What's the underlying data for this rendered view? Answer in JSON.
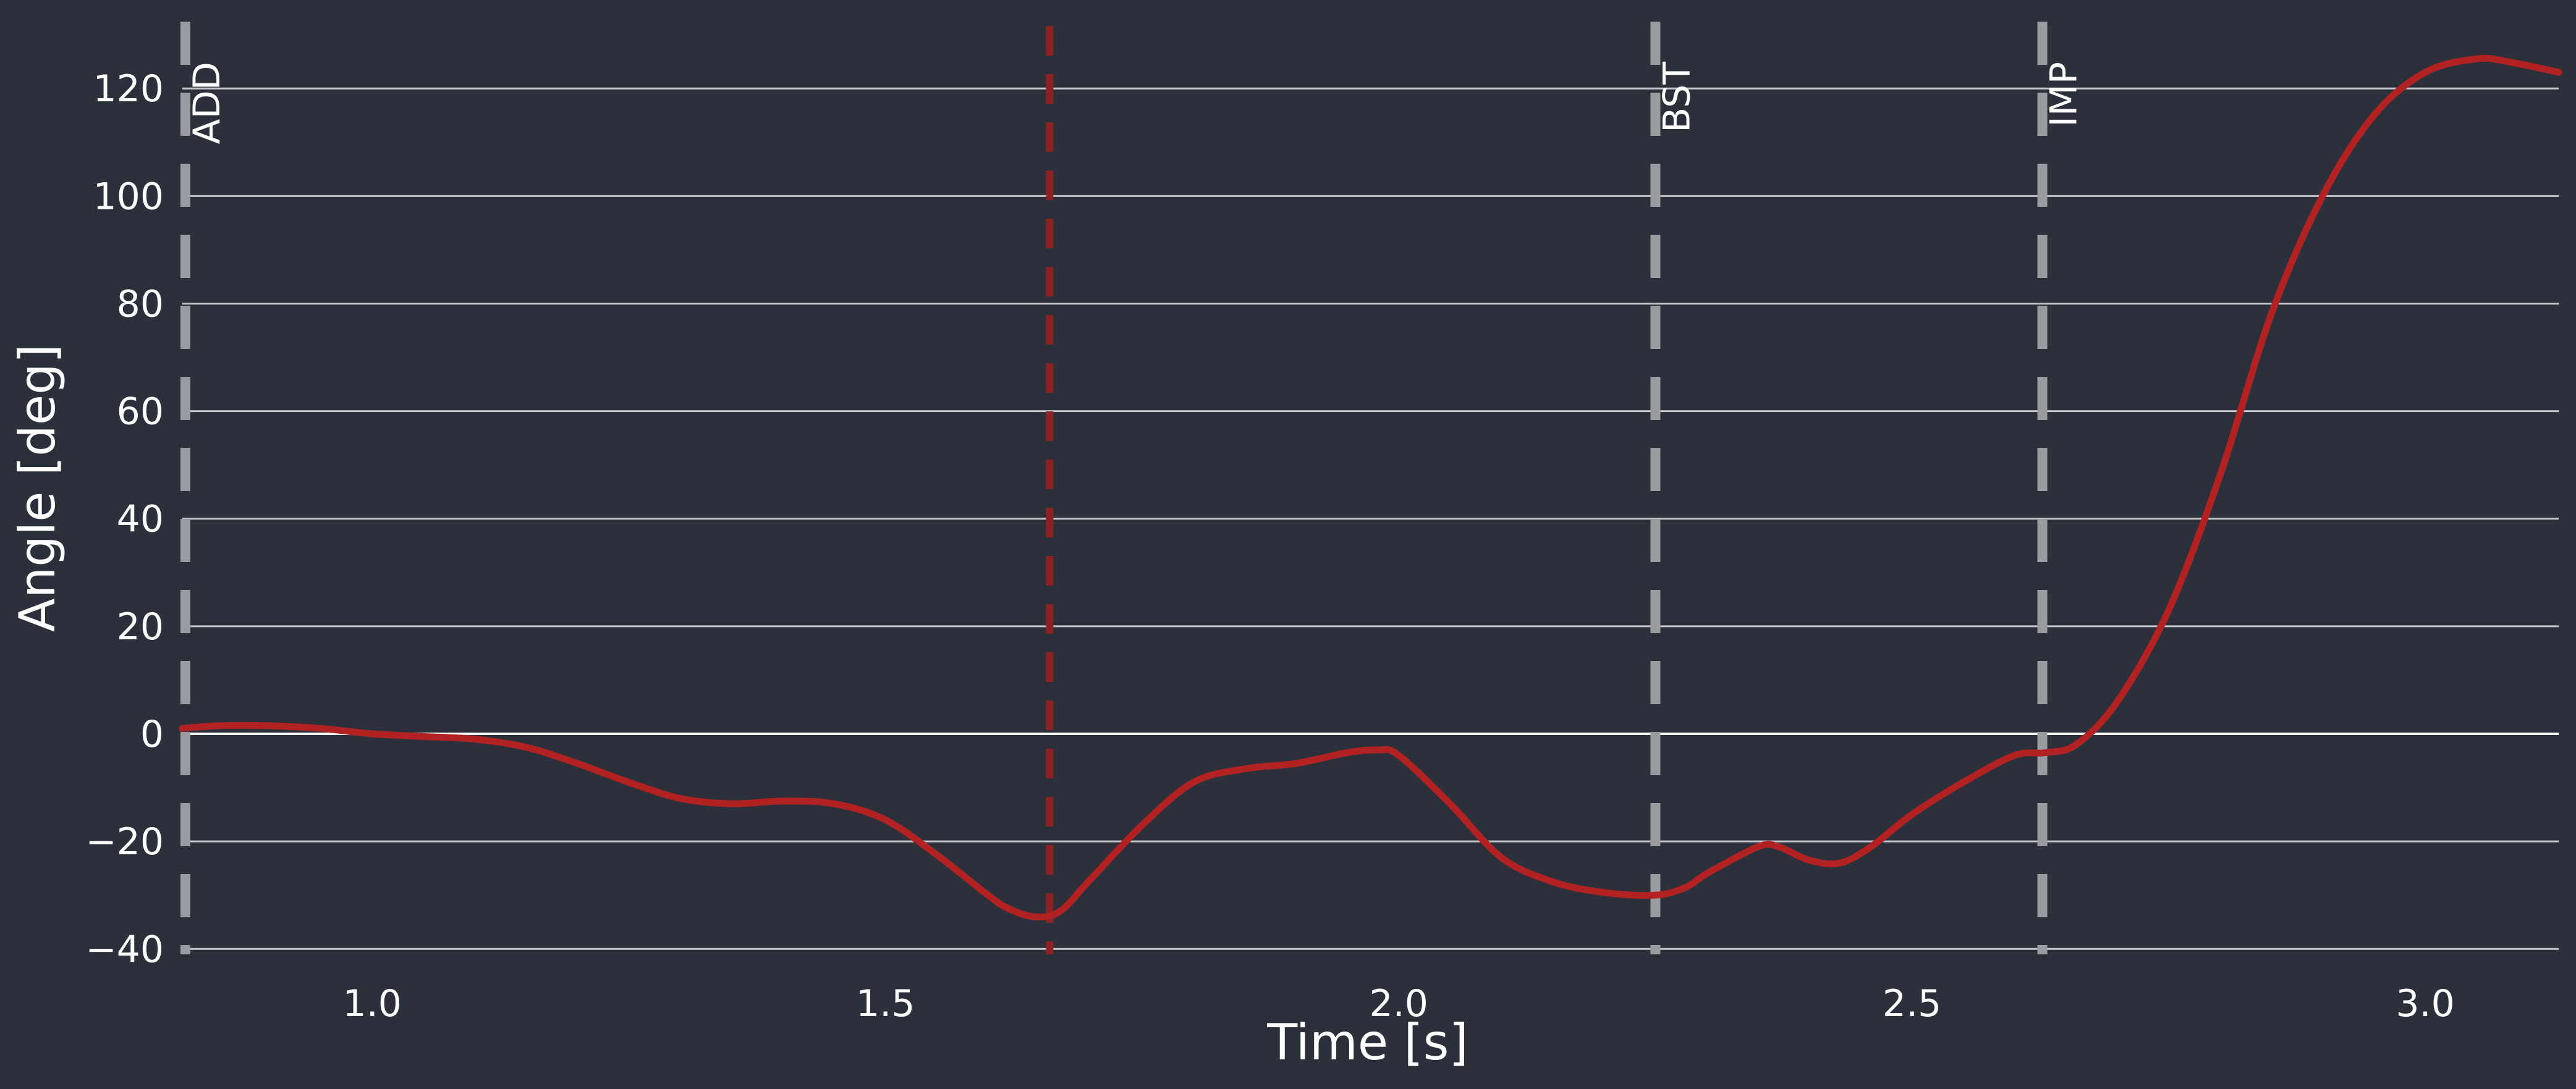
{
  "chart_data": {
    "type": "line",
    "xlabel": "Time [s]",
    "ylabel": "Angle [deg]",
    "xlim": [
      0.815,
      3.13
    ],
    "ylim": [
      -41,
      133
    ],
    "xticks": [
      1.0,
      1.5,
      2.0,
      2.5,
      3.0
    ],
    "xtick_labels": [
      "1.0",
      "1.5",
      "2.0",
      "2.5",
      "3.0"
    ],
    "yticks": [
      -40,
      -20,
      0,
      20,
      40,
      60,
      80,
      100,
      120
    ],
    "ytick_labels": [
      "−40",
      "−20",
      "0",
      "20",
      "40",
      "60",
      "80",
      "100",
      "120"
    ],
    "grid": "horizontal",
    "series": [
      {
        "color": "#b22222",
        "x": [
          0.815,
          0.85,
          0.9,
          0.95,
          1.0,
          1.05,
          1.1,
          1.15,
          1.2,
          1.25,
          1.3,
          1.35,
          1.4,
          1.45,
          1.5,
          1.55,
          1.6,
          1.62,
          1.645,
          1.67,
          1.7,
          1.75,
          1.8,
          1.85,
          1.9,
          1.95,
          1.98,
          2.0,
          2.05,
          2.1,
          2.15,
          2.2,
          2.25,
          2.28,
          2.3,
          2.35,
          2.37,
          2.4,
          2.43,
          2.46,
          2.5,
          2.55,
          2.6,
          2.63,
          2.66,
          2.7,
          2.75,
          2.8,
          2.85,
          2.9,
          2.95,
          3.0,
          3.05,
          3.08,
          3.13
        ],
        "y": [
          1,
          1.5,
          1.5,
          1,
          0,
          -0.5,
          -1,
          -2.5,
          -5.5,
          -9,
          -12,
          -13,
          -12.5,
          -13,
          -16,
          -22.5,
          -30,
          -32.5,
          -34,
          -33,
          -27,
          -17,
          -9,
          -6.5,
          -5.5,
          -3.5,
          -3,
          -4,
          -13,
          -23,
          -27.5,
          -29.5,
          -30,
          -28.5,
          -26,
          -21,
          -21,
          -23.5,
          -24,
          -21,
          -15,
          -9,
          -4,
          -3.5,
          -2,
          6,
          23,
          48,
          78,
          100,
          115,
          123,
          125.5,
          125,
          123
        ]
      }
    ],
    "reference_lines": [
      {
        "x": 1.66,
        "color": "#8b2323",
        "style": "dashed"
      }
    ],
    "events": [
      {
        "x": 0.818,
        "label": "ADD"
      },
      {
        "x": 2.25,
        "label": "BST"
      },
      {
        "x": 2.627,
        "label": "IMP"
      }
    ],
    "zero_line": 0
  }
}
